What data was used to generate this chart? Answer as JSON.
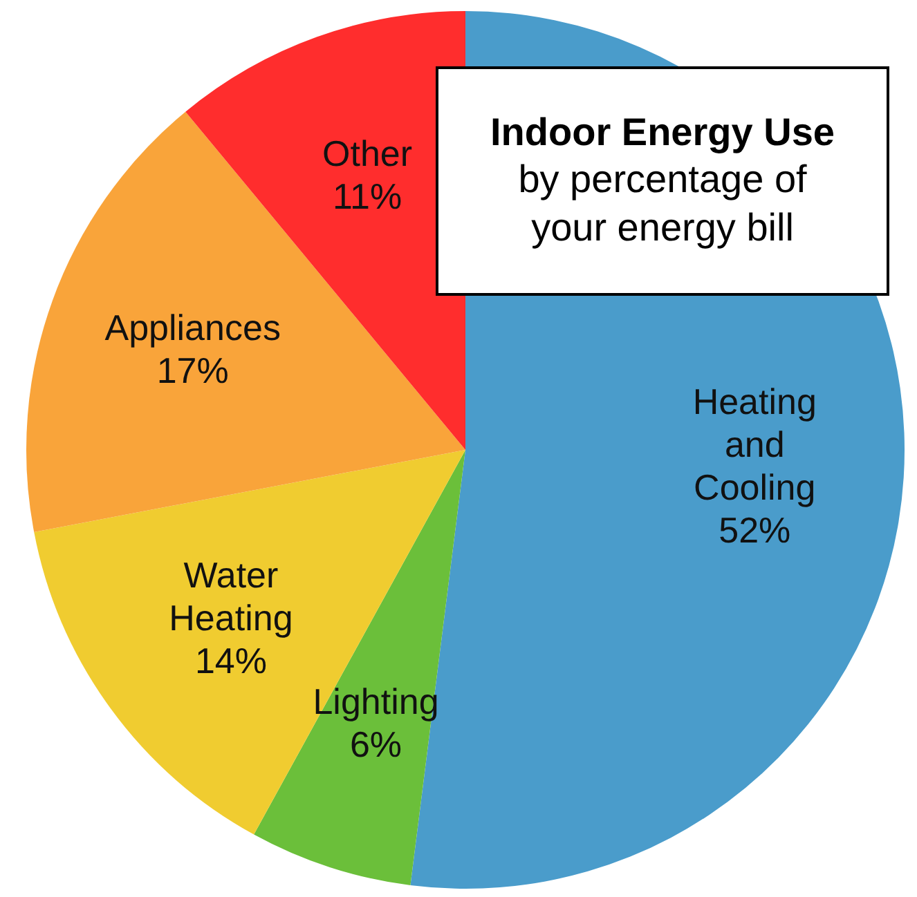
{
  "chart_data": {
    "type": "pie",
    "title": "Indoor Energy Use",
    "subtitle": "by percentage of your energy bill",
    "categories": [
      "Heating and Cooling",
      "Lighting",
      "Water Heating",
      "Appliances",
      "Other"
    ],
    "values": [
      52,
      6,
      14,
      17,
      11
    ],
    "value_labels": [
      "52%",
      "6%",
      "14%",
      "17%",
      "11%"
    ],
    "colors": [
      "#4a9ccb",
      "#6bbf3a",
      "#f0cc30",
      "#f9a43a",
      "#ff2d2d"
    ],
    "legend": false
  }
}
